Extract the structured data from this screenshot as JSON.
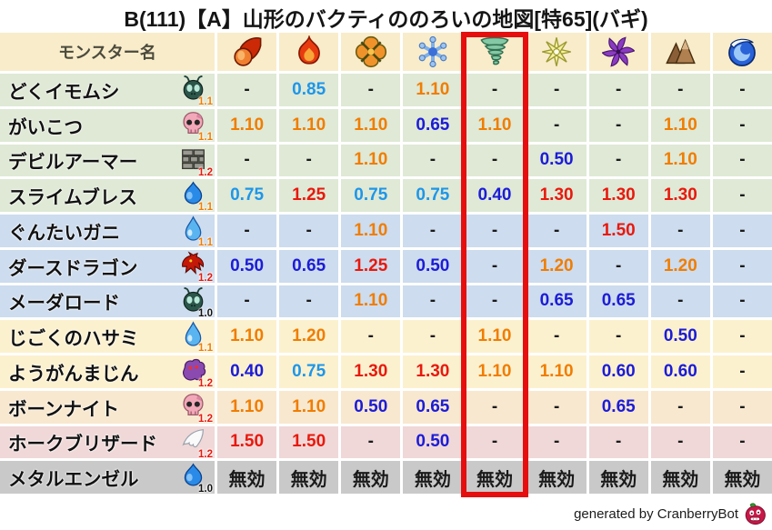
{
  "title": "B(111)【A】山形のバクティののろいの地図[特65](バギ)",
  "chart_data": {
    "type": "table",
    "title": "B(111)【A】山形のバクティののろいの地図[特65](バギ)",
    "name_column_header": "モンスター名",
    "element_columns": [
      "fireball-icon",
      "flame-icon",
      "explosion-icon",
      "snowflake-icon",
      "tornado-icon",
      "spark-icon",
      "pinwheel-icon",
      "mountain-icon",
      "wave-icon"
    ],
    "highlighted_column_index": 4,
    "rows": [
      {
        "name": "どくイモムシ",
        "family_icon": "bug-icon",
        "multiplier": "1.1",
        "bg": "#dfe9d6",
        "values": [
          "-",
          "0.85",
          "-",
          "1.10",
          "-",
          "-",
          "-",
          "-",
          "-"
        ]
      },
      {
        "name": "がいこつ",
        "family_icon": "skull-icon",
        "multiplier": "1.1",
        "bg": "#dfe9d6",
        "values": [
          "1.10",
          "1.10",
          "1.10",
          "0.65",
          "1.10",
          "-",
          "-",
          "1.10",
          "-"
        ]
      },
      {
        "name": "デビルアーマー",
        "family_icon": "brick-icon",
        "multiplier": "1.2",
        "bg": "#dfe9d6",
        "values": [
          "-",
          "-",
          "1.10",
          "-",
          "-",
          "0.50",
          "-",
          "1.10",
          "-"
        ]
      },
      {
        "name": "スライムブレス",
        "family_icon": "slime-icon",
        "multiplier": "1.1",
        "bg": "#dfe9d6",
        "values": [
          "0.75",
          "1.25",
          "0.75",
          "0.75",
          "0.40",
          "1.30",
          "1.30",
          "1.30",
          "-"
        ]
      },
      {
        "name": "ぐんたいガニ",
        "family_icon": "waterdrop-icon",
        "multiplier": "1.1",
        "bg": "#cddcee",
        "values": [
          "-",
          "-",
          "1.10",
          "-",
          "-",
          "-",
          "1.50",
          "-",
          "-"
        ]
      },
      {
        "name": "ダースドラゴン",
        "family_icon": "dragon-icon",
        "multiplier": "1.2",
        "bg": "#cddcee",
        "values": [
          "0.50",
          "0.65",
          "1.25",
          "0.50",
          "-",
          "1.20",
          "-",
          "1.20",
          "-"
        ]
      },
      {
        "name": "メーダロード",
        "family_icon": "bug-icon",
        "multiplier": "1.0",
        "bg": "#cddcee",
        "values": [
          "-",
          "-",
          "1.10",
          "-",
          "-",
          "0.65",
          "0.65",
          "-",
          "-"
        ]
      },
      {
        "name": "じごくのハサミ",
        "family_icon": "waterdrop-icon",
        "multiplier": "1.1",
        "bg": "#fcf1cf",
        "values": [
          "1.10",
          "1.20",
          "-",
          "-",
          "1.10",
          "-",
          "-",
          "0.50",
          "-"
        ]
      },
      {
        "name": "ようがんまじん",
        "family_icon": "blob-icon",
        "multiplier": "1.2",
        "bg": "#fcf1cf",
        "values": [
          "0.40",
          "0.75",
          "1.30",
          "1.30",
          "1.10",
          "1.10",
          "0.60",
          "0.60",
          "-"
        ]
      },
      {
        "name": "ボーンナイト",
        "family_icon": "skull-icon",
        "multiplier": "1.2",
        "bg": "#f8e8cf",
        "values": [
          "1.10",
          "1.10",
          "0.50",
          "0.65",
          "-",
          "-",
          "0.65",
          "-",
          "-"
        ]
      },
      {
        "name": "ホークブリザード",
        "family_icon": "wing-icon",
        "multiplier": "1.2",
        "bg": "#f0d8d8",
        "values": [
          "1.50",
          "1.50",
          "-",
          "0.50",
          "-",
          "-",
          "-",
          "-",
          "-"
        ]
      },
      {
        "name": "メタルエンゼル",
        "family_icon": "slime-icon",
        "multiplier": "1.0",
        "bg": "#c9c9c9",
        "values": [
          "無効",
          "無効",
          "無効",
          "無効",
          "無効",
          "無効",
          "無効",
          "無効",
          "無効"
        ]
      }
    ]
  },
  "header_bg": "#f8ecca",
  "colors": {
    "orange": "#f07d00",
    "red": "#e8190d",
    "light_blue": "#1e96e8",
    "dark_blue": "#1c1cd6",
    "neutral": "#1a1a1a",
    "highlight_box": "#e60f0f"
  },
  "footer": {
    "text": "generated by CranberryBot",
    "icon": "cranberry-bot-icon"
  }
}
